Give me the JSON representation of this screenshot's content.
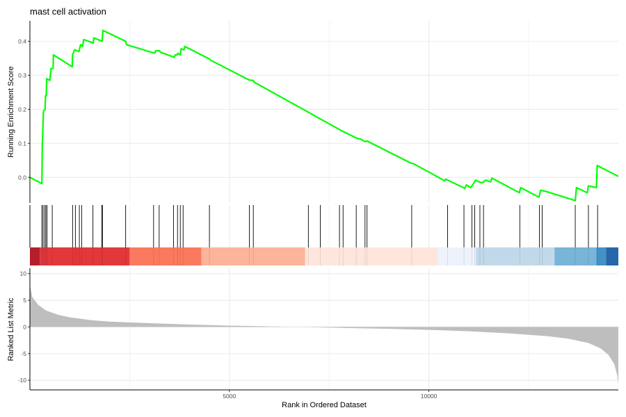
{
  "chart_data": {
    "type": "line",
    "title": "mast cell activation",
    "xlabel": "Rank in Ordered Dataset",
    "xlim": [
      0,
      14750
    ],
    "x_ticks": [
      {
        "value": 5000,
        "label": "5000"
      },
      {
        "value": 10000,
        "label": "10000"
      }
    ],
    "grid": true,
    "panels": [
      {
        "name": "running-enrichment",
        "ylabel": "Running Enrichment Score",
        "ylim": [
          -0.075,
          0.46
        ],
        "y_ticks": [
          {
            "value": 0.0,
            "label": "0.0"
          },
          {
            "value": 0.1,
            "label": "0.1"
          },
          {
            "value": 0.2,
            "label": "0.2"
          },
          {
            "value": 0.3,
            "label": "0.3"
          },
          {
            "value": 0.4,
            "label": "0.4"
          }
        ],
        "line_color": "#00ff00",
        "points": [
          [
            0,
            0.0
          ],
          [
            300,
            -0.018
          ],
          [
            310,
            0.09
          ],
          [
            340,
            0.195
          ],
          [
            380,
            0.2
          ],
          [
            390,
            0.24
          ],
          [
            410,
            0.24
          ],
          [
            420,
            0.29
          ],
          [
            500,
            0.285
          ],
          [
            530,
            0.32
          ],
          [
            580,
            0.32
          ],
          [
            590,
            0.36
          ],
          [
            1060,
            0.325
          ],
          [
            1070,
            0.36
          ],
          [
            1120,
            0.375
          ],
          [
            1230,
            0.37
          ],
          [
            1270,
            0.39
          ],
          [
            1320,
            0.385
          ],
          [
            1350,
            0.405
          ],
          [
            1590,
            0.395
          ],
          [
            1600,
            0.41
          ],
          [
            1810,
            0.4
          ],
          [
            1830,
            0.432
          ],
          [
            2400,
            0.4
          ],
          [
            2420,
            0.39
          ],
          [
            3130,
            0.365
          ],
          [
            3150,
            0.372
          ],
          [
            3250,
            0.372
          ],
          [
            3270,
            0.368
          ],
          [
            3620,
            0.353
          ],
          [
            3640,
            0.36
          ],
          [
            3690,
            0.36
          ],
          [
            3710,
            0.365
          ],
          [
            3770,
            0.36
          ],
          [
            3790,
            0.378
          ],
          [
            3860,
            0.375
          ],
          [
            3880,
            0.385
          ],
          [
            4500,
            0.348
          ],
          [
            4520,
            0.345
          ],
          [
            5500,
            0.286
          ],
          [
            5600,
            0.285
          ],
          [
            5620,
            0.28
          ],
          [
            7800,
            0.138
          ],
          [
            7900,
            0.132
          ],
          [
            8200,
            0.115
          ],
          [
            8300,
            0.112
          ],
          [
            8400,
            0.105
          ],
          [
            8450,
            0.107
          ],
          [
            9500,
            0.045
          ],
          [
            9550,
            0.042
          ],
          [
            9620,
            0.04
          ],
          [
            10400,
            -0.01
          ],
          [
            10420,
            -0.005
          ],
          [
            10900,
            -0.032
          ],
          [
            10940,
            -0.022
          ],
          [
            11050,
            -0.03
          ],
          [
            11100,
            -0.022
          ],
          [
            11170,
            -0.008
          ],
          [
            11300,
            -0.015
          ],
          [
            11350,
            -0.015
          ],
          [
            11420,
            -0.008
          ],
          [
            11550,
            -0.013
          ],
          [
            11580,
            -0.002
          ],
          [
            12270,
            -0.045
          ],
          [
            12300,
            -0.03
          ],
          [
            12760,
            -0.058
          ],
          [
            12800,
            -0.038
          ],
          [
            12900,
            -0.04
          ],
          [
            13670,
            -0.068
          ],
          [
            13700,
            -0.03
          ],
          [
            13970,
            -0.045
          ],
          [
            14000,
            -0.025
          ],
          [
            14200,
            -0.03
          ],
          [
            14220,
            0.035
          ],
          [
            14750,
            0.003
          ]
        ]
      },
      {
        "name": "gene-hits",
        "hits": [
          300,
          330,
          370,
          400,
          430,
          560,
          1070,
          1140,
          1240,
          1300,
          1580,
          1800,
          1820,
          2400,
          3100,
          3240,
          3600,
          3700,
          3770,
          3840,
          4500,
          5500,
          5600,
          6980,
          7280,
          7760,
          7850,
          8180,
          8400,
          8450,
          9570,
          10470,
          10880,
          11080,
          11150,
          11280,
          11370,
          12280,
          12770,
          12840,
          13670,
          14000,
          14230
        ]
      },
      {
        "name": "color-band",
        "segments": [
          {
            "from": 0,
            "to": 250,
            "color": "#b51f2a"
          },
          {
            "from": 250,
            "to": 2500,
            "color": "#e2383b"
          },
          {
            "from": 2500,
            "to": 4300,
            "color": "#fb7a5f"
          },
          {
            "from": 4300,
            "to": 6900,
            "color": "#fcb49b"
          },
          {
            "from": 6900,
            "to": 10230,
            "color": "#fee6dd"
          },
          {
            "from": 10230,
            "to": 11180,
            "color": "#edf2fb"
          },
          {
            "from": 11180,
            "to": 13150,
            "color": "#c1d9ea"
          },
          {
            "from": 13150,
            "to": 14200,
            "color": "#79b4d9"
          },
          {
            "from": 14200,
            "to": 14440,
            "color": "#4292c6"
          },
          {
            "from": 14440,
            "to": 14750,
            "color": "#2666a9"
          }
        ]
      },
      {
        "name": "ranked-list-metric",
        "ylabel": "Ranked List Metric",
        "ylim": [
          -11.8,
          11.0
        ],
        "y_ticks": [
          {
            "value": 10,
            "label": "10"
          },
          {
            "value": 5,
            "label": "5"
          },
          {
            "value": 0,
            "label": "0"
          },
          {
            "value": -5,
            "label": "-5"
          },
          {
            "value": -10,
            "label": "-10"
          }
        ],
        "fill_color": "#bebebe",
        "points": [
          [
            0,
            9.5
          ],
          [
            10,
            7.5
          ],
          [
            60,
            5.6
          ],
          [
            200,
            4.2
          ],
          [
            400,
            3.1
          ],
          [
            700,
            2.3
          ],
          [
            1000,
            1.8
          ],
          [
            1500,
            1.3
          ],
          [
            2000,
            1.0
          ],
          [
            3000,
            0.7
          ],
          [
            4000,
            0.45
          ],
          [
            5000,
            0.25
          ],
          [
            6000,
            0.1
          ],
          [
            7000,
            -0.05
          ],
          [
            8000,
            -0.2
          ],
          [
            9000,
            -0.35
          ],
          [
            10000,
            -0.55
          ],
          [
            11000,
            -0.8
          ],
          [
            12000,
            -1.2
          ],
          [
            13000,
            -1.75
          ],
          [
            13500,
            -2.2
          ],
          [
            14000,
            -3.0
          ],
          [
            14300,
            -4.0
          ],
          [
            14500,
            -5.2
          ],
          [
            14650,
            -7.0
          ],
          [
            14720,
            -9.0
          ],
          [
            14750,
            -10.8
          ]
        ]
      }
    ]
  }
}
